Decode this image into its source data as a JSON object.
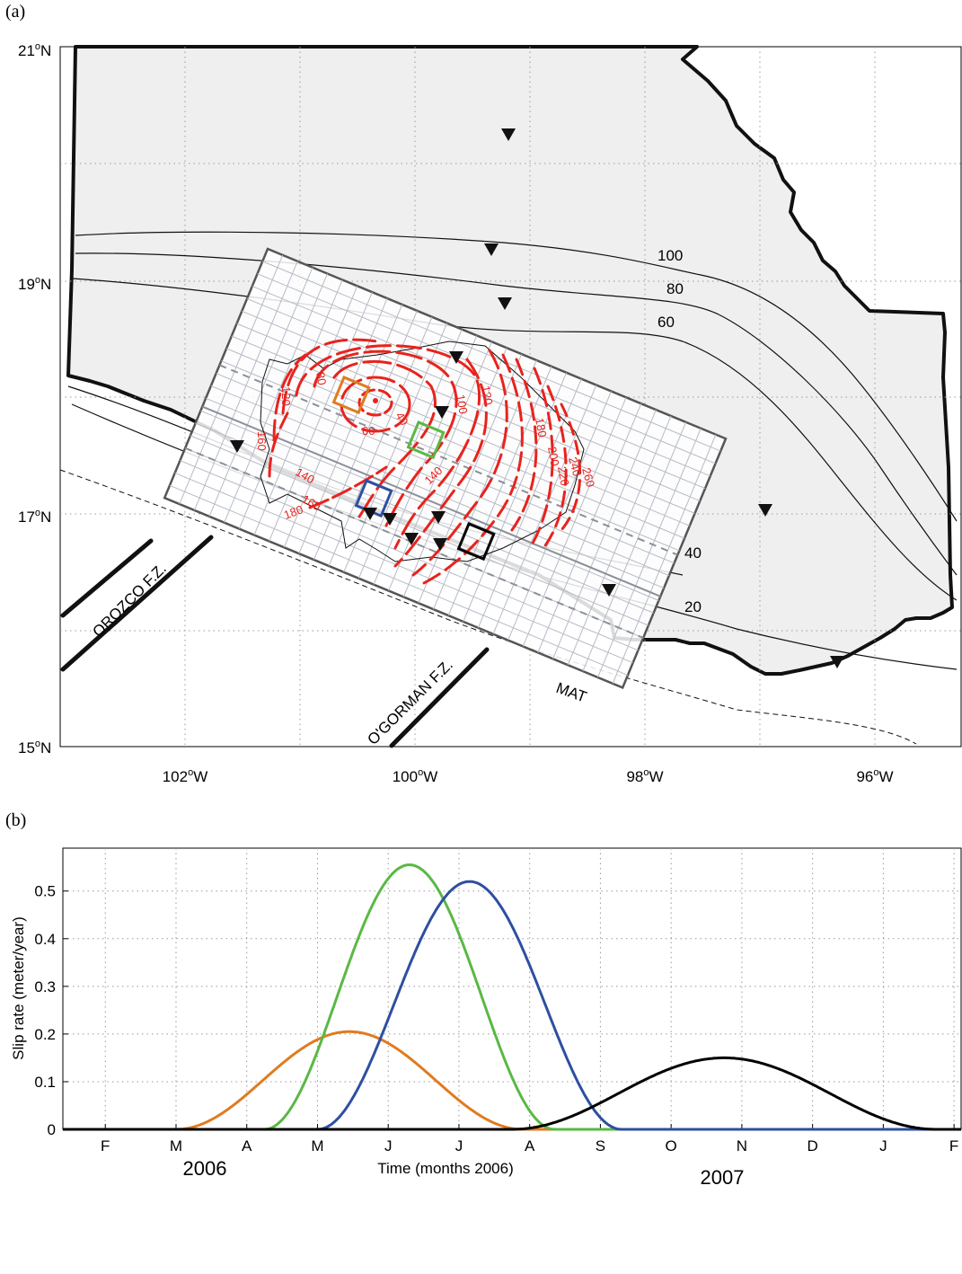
{
  "panel_a": {
    "label": "(a)",
    "lat_labels": [
      {
        "deg": "21",
        "sup": "o",
        "hemi": "N"
      },
      {
        "deg": "19",
        "sup": "o",
        "hemi": "N"
      },
      {
        "deg": "17",
        "sup": "o",
        "hemi": "N"
      },
      {
        "deg": "15",
        "sup": "o",
        "hemi": "N"
      }
    ],
    "lon_labels": [
      {
        "deg": "102",
        "sup": "o",
        "hemi": "W"
      },
      {
        "deg": "100",
        "sup": "o",
        "hemi": "W"
      },
      {
        "deg": "98",
        "sup": "o",
        "hemi": "W"
      },
      {
        "deg": "96",
        "sup": "o",
        "hemi": "W"
      }
    ],
    "depth_labels": [
      "100",
      "80",
      "60",
      "40",
      "20"
    ],
    "slip_labels": [
      "40",
      "60",
      "80",
      "100",
      "120",
      "120",
      "140",
      "160",
      "180",
      "160",
      "180",
      "200",
      "220",
      "240",
      "260",
      "140"
    ],
    "feature_labels": {
      "orozco": "OROZCO F.Z.",
      "ogorman": "O'GORMAN F.Z.",
      "mat": "MAT"
    },
    "patch_colors": {
      "orange": "#e07b20",
      "green": "#5ab845",
      "blue": "#2e4fa0",
      "black": "#000000"
    },
    "contour_color": "#e8231d"
  },
  "panel_b": {
    "label": "(b)",
    "ylabel": "Slip rate (meter/year)",
    "xlabel": "Time (months 2006)",
    "year_left": "2006",
    "year_right": "2007"
  },
  "chart_data": {
    "type": "line",
    "xlabel": "Time (months 2006)",
    "ylabel": "Slip rate (meter/year)",
    "x_ticks": [
      "F",
      "M",
      "A",
      "M",
      "J",
      "J",
      "A",
      "S",
      "O",
      "N",
      "D",
      "J",
      "F"
    ],
    "x_tick_pos": [
      1,
      2,
      3,
      4,
      5,
      6,
      7,
      8,
      9,
      10,
      11,
      12,
      13
    ],
    "xlim": [
      0.4,
      13.1
    ],
    "ylim": [
      0,
      0.59
    ],
    "y_ticks": [
      0,
      0.1,
      0.2,
      0.3,
      0.4,
      0.5
    ],
    "grid": true,
    "series": [
      {
        "color": "#e07b20",
        "peak_x": 4.45,
        "peak_y": 0.205,
        "half_width": 2.45
      },
      {
        "color": "#5ab845",
        "peak_x": 5.3,
        "peak_y": 0.555,
        "half_width": 2.05
      },
      {
        "color": "#2e4fa0",
        "peak_x": 6.15,
        "peak_y": 0.52,
        "half_width": 2.15
      },
      {
        "color": "#000000",
        "peak_x": 9.75,
        "peak_y": 0.15,
        "half_width": 3.0
      }
    ]
  }
}
